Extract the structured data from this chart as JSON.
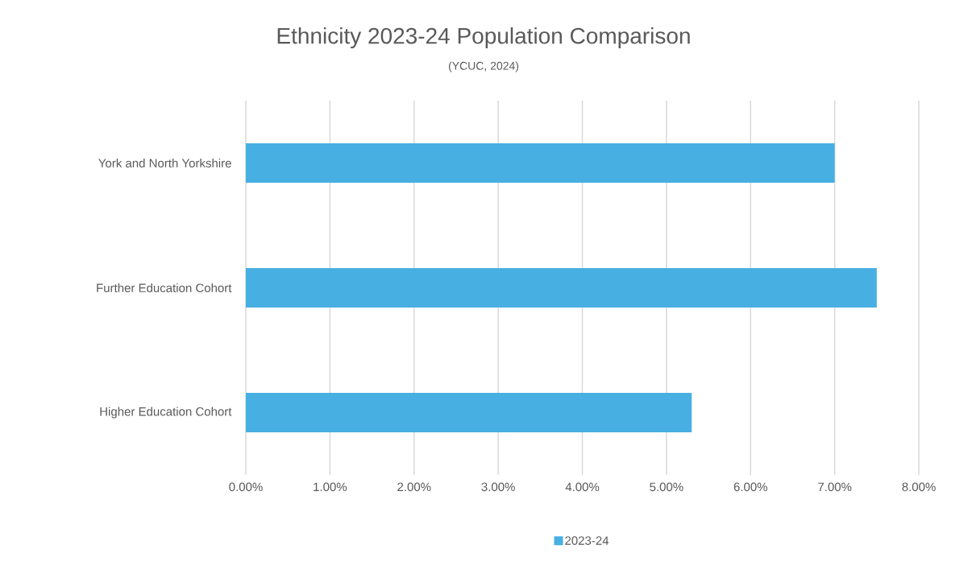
{
  "chart_data": {
    "type": "bar",
    "orientation": "horizontal",
    "title": "Ethnicity 2023-24 Population Comparison",
    "subtitle": "(YCUC, 2024)",
    "categories": [
      "York and North Yorkshire",
      "Further Education Cohort",
      "Higher Education Cohort"
    ],
    "series": [
      {
        "name": "2023-24",
        "color": "#47afe2",
        "values": [
          7.0,
          7.5,
          5.3
        ]
      }
    ],
    "xlim": [
      0,
      8
    ],
    "xticks": [
      {
        "value": 0,
        "label": "0.00%"
      },
      {
        "value": 1,
        "label": "1.00%"
      },
      {
        "value": 2,
        "label": "2.00%"
      },
      {
        "value": 3,
        "label": "3.00%"
      },
      {
        "value": 4,
        "label": "4.00%"
      },
      {
        "value": 5,
        "label": "5.00%"
      },
      {
        "value": 6,
        "label": "6.00%"
      },
      {
        "value": 7,
        "label": "7.00%"
      },
      {
        "value": 8,
        "label": "8.00%"
      }
    ],
    "grid": "x",
    "legend": "bottom"
  }
}
